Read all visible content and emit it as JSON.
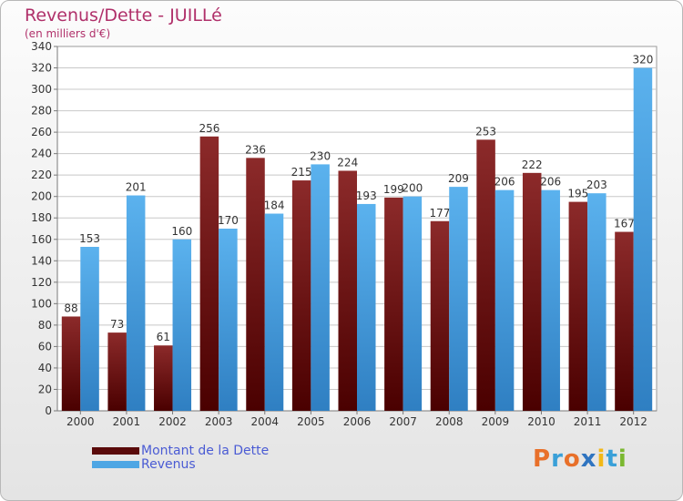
{
  "title": "Revenus/Dette - JUILLé",
  "subtitle": "(en milliers d'€)",
  "logo": {
    "text": "Proxiti",
    "colors": [
      "#e8702a",
      "#3aa0d8",
      "#e8702a",
      "#2f74c0",
      "#f2b817",
      "#3aa0d8",
      "#7ab830"
    ]
  },
  "colors": {
    "dette": "#7a1414",
    "revenus": "#4ea6e4",
    "grid": "#c8c8c8",
    "title": "#b0306a"
  },
  "chart_data": {
    "type": "bar",
    "categories": [
      "2000",
      "2001",
      "2002",
      "2003",
      "2004",
      "2005",
      "2006",
      "2007",
      "2008",
      "2009",
      "2010",
      "2011",
      "2012"
    ],
    "ylim": [
      0,
      340
    ],
    "ytick_step": 20,
    "grid": true,
    "legend_position": "bottom-left",
    "series": [
      {
        "name": "Montant de la Dette",
        "values": [
          88,
          73,
          61,
          256,
          236,
          215,
          224,
          199,
          177,
          253,
          222,
          195,
          167
        ]
      },
      {
        "name": "Revenus",
        "values": [
          153,
          201,
          160,
          170,
          184,
          230,
          193,
          200,
          209,
          206,
          206,
          203,
          320
        ]
      }
    ]
  }
}
